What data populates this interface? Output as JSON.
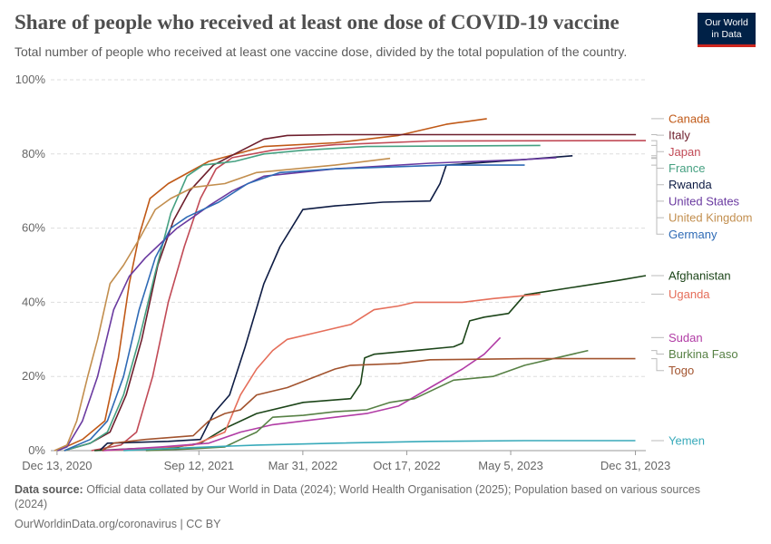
{
  "header": {
    "title": "Share of people who received at least one dose of COVID-19 vaccine",
    "subtitle": "Total number of people who received at least one vaccine dose, divided by the total population of the country.",
    "logo_line1": "Our World",
    "logo_line2": "in Data"
  },
  "footer": {
    "source_label": "Data source:",
    "source_text": "Official data collated by Our World in Data (2024); World Health Organisation (2025); Population based on various sources (2024)",
    "credit": "OurWorldinData.org/coronavirus | CC BY"
  },
  "chart_data": {
    "type": "line",
    "title": "Share of people who received at least one dose of COVID-19 vaccine",
    "ylim": [
      0,
      100
    ],
    "y_ticks": [
      0,
      20,
      40,
      60,
      80,
      100
    ],
    "y_tick_labels": [
      "0%",
      "20%",
      "40%",
      "60%",
      "80%",
      "100%"
    ],
    "x_range": [
      "2020-12-01",
      "2024-01-20"
    ],
    "x_ticks": [
      "2020-12-13",
      "2021-09-12",
      "2022-03-31",
      "2022-10-17",
      "2023-05-05",
      "2023-12-31"
    ],
    "x_tick_labels": [
      "Dec 13, 2020",
      "Sep 12, 2021",
      "Mar 31, 2022",
      "Oct 17, 2022",
      "May 5, 2023",
      "Dec 31, 2023"
    ],
    "grid": "horizontal dashed",
    "legend": "right, labels at line ends",
    "series": [
      {
        "name": "Canada",
        "color": "#c05917",
        "points": [
          [
            "2020-12-14",
            0
          ],
          [
            "2021-01-31",
            3
          ],
          [
            "2021-03-15",
            8
          ],
          [
            "2021-04-10",
            25
          ],
          [
            "2021-05-01",
            45
          ],
          [
            "2021-05-20",
            58
          ],
          [
            "2021-06-10",
            68
          ],
          [
            "2021-07-15",
            72
          ],
          [
            "2021-10-01",
            78
          ],
          [
            "2022-01-15",
            82
          ],
          [
            "2022-06-01",
            83
          ],
          [
            "2022-10-01",
            85
          ],
          [
            "2023-01-01",
            88
          ],
          [
            "2023-03-20",
            89.5
          ]
        ]
      },
      {
        "name": "Italy",
        "color": "#6d1e2c",
        "points": [
          [
            "2020-12-27",
            0
          ],
          [
            "2021-02-15",
            2
          ],
          [
            "2021-03-25",
            5
          ],
          [
            "2021-04-25",
            15
          ],
          [
            "2021-05-25",
            30
          ],
          [
            "2021-06-25",
            50
          ],
          [
            "2021-07-25",
            62
          ],
          [
            "2021-08-25",
            70
          ],
          [
            "2021-10-10",
            77
          ],
          [
            "2021-11-20",
            80
          ],
          [
            "2022-01-15",
            84
          ],
          [
            "2022-03-01",
            85
          ],
          [
            "2022-06-01",
            85.2
          ],
          [
            "2024-01-01",
            85.2
          ]
        ]
      },
      {
        "name": "Japan",
        "color": "#c14a56",
        "points": [
          [
            "2021-02-17",
            0
          ],
          [
            "2021-04-15",
            1.5
          ],
          [
            "2021-05-15",
            5
          ],
          [
            "2021-06-15",
            20
          ],
          [
            "2021-07-15",
            40
          ],
          [
            "2021-08-15",
            55
          ],
          [
            "2021-09-15",
            68
          ],
          [
            "2021-10-15",
            76
          ],
          [
            "2021-11-15",
            79
          ],
          [
            "2022-02-01",
            81
          ],
          [
            "2022-06-01",
            82.5
          ],
          [
            "2022-12-01",
            83.5
          ],
          [
            "2024-01-20",
            83.6
          ]
        ]
      },
      {
        "name": "France",
        "color": "#45a081",
        "points": [
          [
            "2020-12-27",
            0
          ],
          [
            "2021-02-15",
            2
          ],
          [
            "2021-03-20",
            5
          ],
          [
            "2021-04-20",
            15
          ],
          [
            "2021-05-20",
            30
          ],
          [
            "2021-06-20",
            48
          ],
          [
            "2021-07-20",
            64
          ],
          [
            "2021-08-20",
            74
          ],
          [
            "2021-09-20",
            77
          ],
          [
            "2021-11-20",
            78
          ],
          [
            "2022-01-15",
            80
          ],
          [
            "2022-04-01",
            81
          ],
          [
            "2022-08-01",
            82
          ],
          [
            "2023-07-01",
            82.3
          ]
        ]
      },
      {
        "name": "Rwanda",
        "color": "#0e1c44",
        "points": [
          [
            "2021-03-05",
            0
          ],
          [
            "2021-03-20",
            2
          ],
          [
            "2021-07-15",
            2.5
          ],
          [
            "2021-09-15",
            3
          ],
          [
            "2021-10-10",
            10
          ],
          [
            "2021-11-10",
            15
          ],
          [
            "2021-12-10",
            28
          ],
          [
            "2022-01-15",
            45
          ],
          [
            "2022-02-15",
            55
          ],
          [
            "2022-03-31",
            65
          ],
          [
            "2022-06-01",
            66
          ],
          [
            "2022-09-01",
            67
          ],
          [
            "2022-12-01",
            67.3
          ],
          [
            "2022-12-20",
            72
          ],
          [
            "2023-01-01",
            77
          ],
          [
            "2023-06-01",
            78.5
          ],
          [
            "2023-09-01",
            79.5
          ]
        ]
      },
      {
        "name": "United States",
        "color": "#6a3aa0",
        "points": [
          [
            "2020-12-14",
            0
          ],
          [
            "2021-01-01",
            1
          ],
          [
            "2021-01-31",
            8
          ],
          [
            "2021-03-01",
            20
          ],
          [
            "2021-04-01",
            38
          ],
          [
            "2021-05-01",
            47
          ],
          [
            "2021-06-01",
            52
          ],
          [
            "2021-07-01",
            56
          ],
          [
            "2021-08-01",
            60
          ],
          [
            "2021-09-01",
            63
          ],
          [
            "2021-10-01",
            66
          ],
          [
            "2021-11-15",
            70
          ],
          [
            "2022-01-15",
            74
          ],
          [
            "2022-06-01",
            76
          ],
          [
            "2022-12-01",
            77.5
          ],
          [
            "2023-06-01",
            78.5
          ],
          [
            "2023-08-01",
            79
          ]
        ]
      },
      {
        "name": "United Kingdom",
        "color": "#c28e4e",
        "points": [
          [
            "2020-12-08",
            0
          ],
          [
            "2021-01-01",
            1.5
          ],
          [
            "2021-01-20",
            8
          ],
          [
            "2021-02-10",
            20
          ],
          [
            "2021-03-01",
            30
          ],
          [
            "2021-03-25",
            45
          ],
          [
            "2021-04-20",
            50
          ],
          [
            "2021-05-20",
            57
          ],
          [
            "2021-06-20",
            65
          ],
          [
            "2021-07-20",
            68
          ],
          [
            "2021-09-01",
            71
          ],
          [
            "2021-11-01",
            72
          ],
          [
            "2022-01-01",
            75
          ],
          [
            "2022-06-01",
            77
          ],
          [
            "2022-09-15",
            78.8
          ]
        ]
      },
      {
        "name": "Germany",
        "color": "#2e6ab5",
        "points": [
          [
            "2020-12-27",
            0
          ],
          [
            "2021-02-15",
            3
          ],
          [
            "2021-03-20",
            8
          ],
          [
            "2021-04-20",
            20
          ],
          [
            "2021-05-20",
            38
          ],
          [
            "2021-06-20",
            52
          ],
          [
            "2021-07-20",
            60
          ],
          [
            "2021-08-20",
            63
          ],
          [
            "2021-10-20",
            67
          ],
          [
            "2021-12-15",
            72
          ],
          [
            "2022-02-15",
            75
          ],
          [
            "2022-06-01",
            76
          ],
          [
            "2023-01-01",
            77
          ],
          [
            "2023-06-01",
            77
          ]
        ]
      },
      {
        "name": "Afghanistan",
        "color": "#1c4519",
        "points": [
          [
            "2021-02-23",
            0
          ],
          [
            "2021-05-01",
            0.5
          ],
          [
            "2021-08-01",
            1
          ],
          [
            "2021-09-15",
            2
          ],
          [
            "2021-11-01",
            6
          ],
          [
            "2022-01-01",
            10
          ],
          [
            "2022-04-01",
            13
          ],
          [
            "2022-07-01",
            14
          ],
          [
            "2022-07-20",
            18
          ],
          [
            "2022-07-28",
            25
          ],
          [
            "2022-08-15",
            26
          ],
          [
            "2022-11-01",
            27
          ],
          [
            "2023-01-15",
            28
          ],
          [
            "2023-02-01",
            29
          ],
          [
            "2023-02-15",
            35
          ],
          [
            "2023-03-15",
            36
          ],
          [
            "2023-05-01",
            37
          ],
          [
            "2023-06-01",
            42
          ],
          [
            "2023-09-01",
            44
          ],
          [
            "2023-12-01",
            46
          ],
          [
            "2024-01-20",
            47.2
          ]
        ]
      },
      {
        "name": "Uganda",
        "color": "#e56e5a",
        "points": [
          [
            "2021-03-10",
            0
          ],
          [
            "2021-06-01",
            0.5
          ],
          [
            "2021-09-01",
            1.5
          ],
          [
            "2021-11-01",
            5
          ],
          [
            "2021-12-01",
            15
          ],
          [
            "2022-01-01",
            22
          ],
          [
            "2022-02-01",
            27
          ],
          [
            "2022-03-01",
            30
          ],
          [
            "2022-05-01",
            32
          ],
          [
            "2022-07-01",
            34
          ],
          [
            "2022-08-15",
            38
          ],
          [
            "2022-10-01",
            39
          ],
          [
            "2022-11-01",
            40
          ],
          [
            "2023-02-01",
            40
          ],
          [
            "2023-04-01",
            41
          ],
          [
            "2023-07-01",
            42.2
          ]
        ]
      },
      {
        "name": "Sudan",
        "color": "#b13ca5",
        "points": [
          [
            "2021-03-10",
            0
          ],
          [
            "2021-07-01",
            1
          ],
          [
            "2021-10-01",
            2
          ],
          [
            "2021-12-01",
            5
          ],
          [
            "2022-02-01",
            7
          ],
          [
            "2022-04-01",
            8
          ],
          [
            "2022-06-01",
            9
          ],
          [
            "2022-08-01",
            10
          ],
          [
            "2022-10-01",
            12
          ],
          [
            "2022-12-01",
            17
          ],
          [
            "2023-02-01",
            22
          ],
          [
            "2023-03-15",
            26
          ],
          [
            "2023-04-15",
            30.5
          ]
        ]
      },
      {
        "name": "Burkina Faso",
        "color": "#578145",
        "points": [
          [
            "2021-06-02",
            0
          ],
          [
            "2021-09-01",
            0.5
          ],
          [
            "2021-11-01",
            1
          ],
          [
            "2021-12-01",
            3
          ],
          [
            "2022-01-01",
            5
          ],
          [
            "2022-02-01",
            9
          ],
          [
            "2022-04-01",
            9.5
          ],
          [
            "2022-06-01",
            10.5
          ],
          [
            "2022-08-01",
            11
          ],
          [
            "2022-09-15",
            13
          ],
          [
            "2022-11-01",
            14
          ],
          [
            "2023-01-15",
            19
          ],
          [
            "2023-04-01",
            20
          ],
          [
            "2023-06-01",
            23
          ],
          [
            "2023-10-01",
            27
          ]
        ]
      },
      {
        "name": "Togo",
        "color": "#a2532e",
        "points": [
          [
            "2021-03-10",
            0
          ],
          [
            "2021-04-01",
            2
          ],
          [
            "2021-06-01",
            3
          ],
          [
            "2021-09-01",
            4
          ],
          [
            "2021-10-01",
            8
          ],
          [
            "2021-11-01",
            10
          ],
          [
            "2021-12-01",
            11
          ],
          [
            "2022-01-01",
            15
          ],
          [
            "2022-03-01",
            17
          ],
          [
            "2022-06-01",
            22
          ],
          [
            "2022-07-01",
            23
          ],
          [
            "2022-10-01",
            23.5
          ],
          [
            "2022-12-01",
            24.5
          ],
          [
            "2023-06-01",
            24.8
          ],
          [
            "2023-12-31",
            24.8
          ]
        ]
      },
      {
        "name": "Yemen",
        "color": "#38aaba",
        "points": [
          [
            "2021-04-20",
            0
          ],
          [
            "2021-07-01",
            0.5
          ],
          [
            "2021-10-01",
            1
          ],
          [
            "2022-01-01",
            1.5
          ],
          [
            "2022-06-01",
            2
          ],
          [
            "2022-12-01",
            2.5
          ],
          [
            "2023-06-01",
            2.7
          ],
          [
            "2023-12-31",
            2.7
          ]
        ]
      }
    ]
  }
}
